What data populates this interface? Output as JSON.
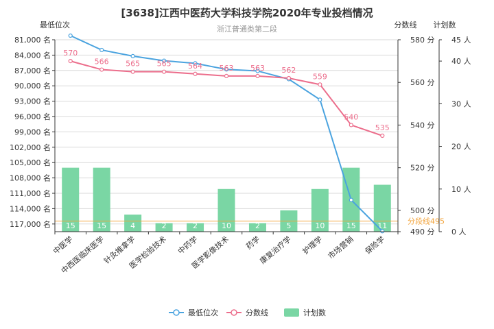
{
  "chart_data": {
    "type": "bar",
    "title": "[3638]江西中医药大学科技学院2020年专业投档情况",
    "subtitle": "浙江普通类第二段",
    "categories": [
      "中医学",
      "中西医临床医学",
      "针灸推拿学",
      "医学检验技术",
      "中药学",
      "医学影像技术",
      "药学",
      "康复治疗学",
      "护理学",
      "市场营销",
      "保险学"
    ],
    "axis_names": {
      "rank": "最低位次",
      "score": "分数线",
      "plan": "计划数"
    },
    "rank_axis": {
      "min": 81000,
      "max": 118500,
      "ticks": [
        "81,000 名",
        "84,000 名",
        "87,000 名",
        "90,000 名",
        "93,000 名",
        "96,000 名",
        "99,000 名",
        "102,000 名",
        "105,000 名",
        "108,000 名",
        "111,000 名",
        "114,000 名",
        "117,000 名"
      ],
      "tick_values": [
        81000,
        84000,
        87000,
        90000,
        93000,
        96000,
        99000,
        102000,
        105000,
        108000,
        111000,
        114000,
        117000
      ]
    },
    "score_axis": {
      "min": 490,
      "max": 580,
      "ticks": [
        "490 分",
        "500 分",
        "520 分",
        "540 分",
        "560 分",
        "580 分"
      ],
      "tick_values": [
        490,
        500,
        520,
        540,
        560,
        580
      ]
    },
    "plan_axis": {
      "min": 0,
      "max": 45,
      "ticks": [
        "0 人",
        "10 人",
        "20 人",
        "30 人",
        "40 人",
        "45 人"
      ],
      "tick_values": [
        0,
        10,
        20,
        30,
        40,
        45
      ]
    },
    "series": [
      {
        "name": "最低位次",
        "type": "line",
        "axis": "rank",
        "color": "#4aa3df",
        "values": [
          80200,
          83000,
          84200,
          85100,
          85600,
          86800,
          87100,
          88700,
          92700,
          112300,
          118400
        ]
      },
      {
        "name": "分数线",
        "type": "line",
        "axis": "score",
        "color": "#ec6e8c",
        "values": [
          570,
          566,
          565,
          565,
          564,
          563,
          563,
          562,
          559,
          540,
          535
        ],
        "labels": [
          "570",
          "566",
          "565",
          "565",
          "564",
          "563",
          "563",
          "562",
          "559",
          "540",
          "535"
        ]
      },
      {
        "name": "计划数",
        "type": "bar",
        "axis": "plan",
        "color": "#7ad6a4",
        "values": [
          15,
          15,
          4,
          2,
          2,
          10,
          2,
          5,
          10,
          15,
          11
        ],
        "labels": [
          "15",
          "15",
          "4",
          "2",
          "2",
          "10",
          "2",
          "5",
          "10",
          "15",
          "11"
        ]
      }
    ],
    "markline": {
      "value": 495,
      "label": "分段线495",
      "color": "#f2a33a"
    },
    "legend_position": "bottom"
  }
}
